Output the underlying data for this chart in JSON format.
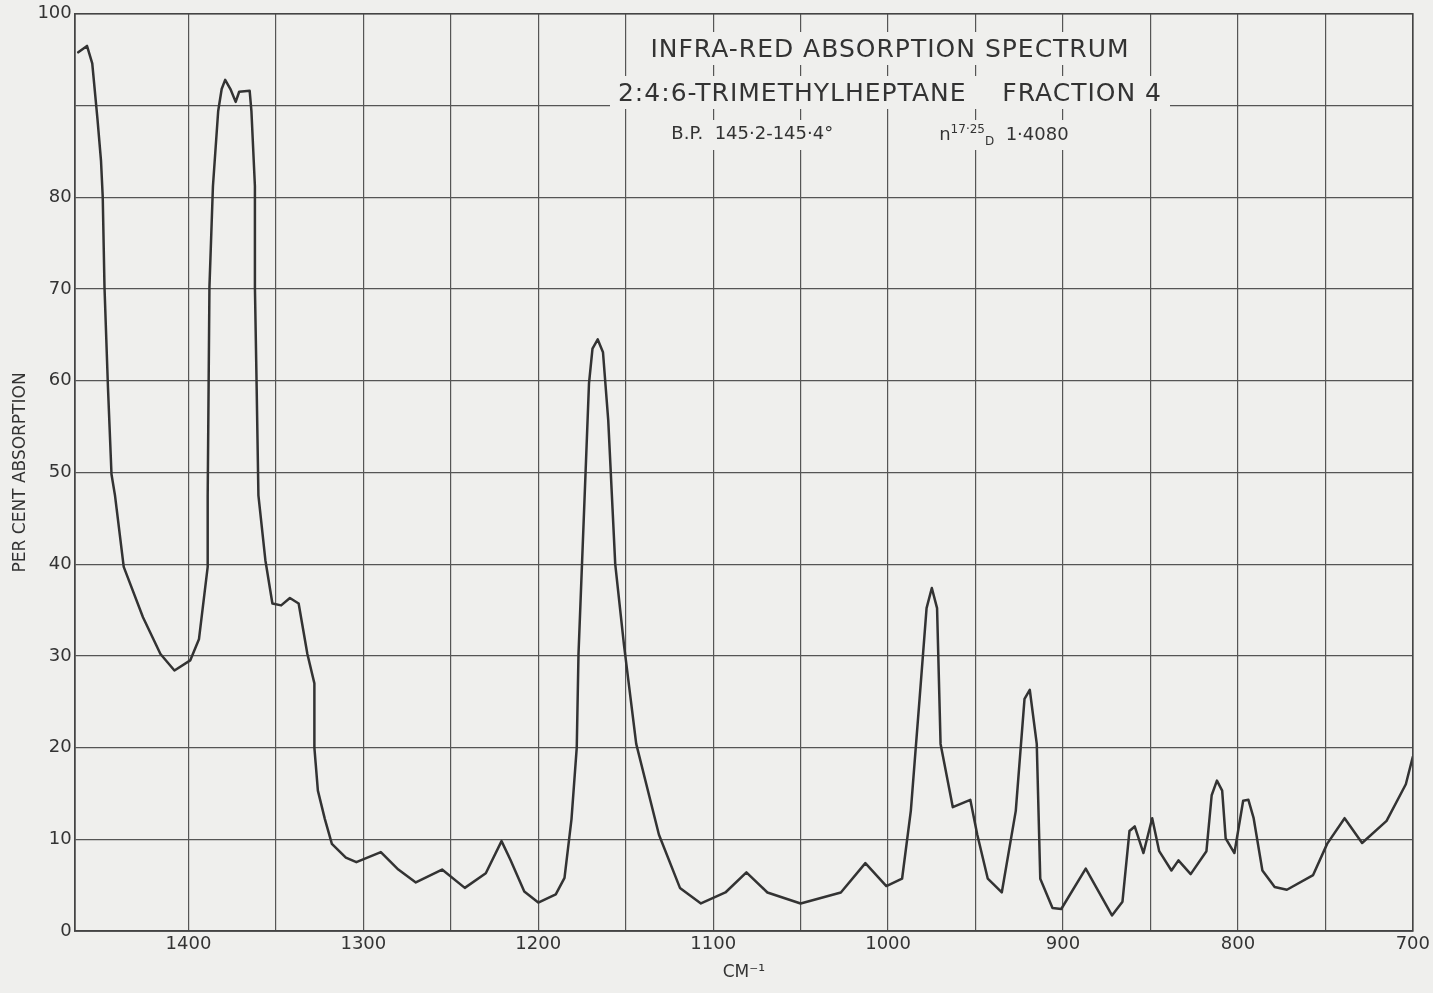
{
  "chart_data": {
    "type": "line",
    "title": "INFRA-RED ABSORPTION SPECTRUM",
    "subtitle": "2:4:6-TRIMETHYLHEPTANE    FRACTION 4",
    "xlabel": "CM⁻¹",
    "ylabel": "PER CENT ABSORPTION",
    "annotations": [
      "B.P.  145·2-145·4°",
      "n$^{17·25}$$_{D}$  1·4080"
    ],
    "x": [
      1463,
      1458,
      1455,
      1452,
      1450,
      1449,
      1448,
      1446,
      1444,
      1442,
      1437,
      1426,
      1416,
      1408,
      1399,
      1394,
      1389,
      1389,
      1388,
      1386,
      1383,
      1381,
      1379,
      1376,
      1373,
      1371,
      1365,
      1364,
      1362,
      1362,
      1361,
      1360,
      1356,
      1352,
      1347,
      1342,
      1337,
      1332,
      1328,
      1328,
      1326,
      1322,
      1318,
      1310,
      1304,
      1290,
      1280,
      1270,
      1255,
      1242,
      1230,
      1221,
      1216,
      1208,
      1200,
      1190,
      1185,
      1181,
      1178,
      1177,
      1173,
      1171,
      1169,
      1166,
      1163,
      1160,
      1156,
      1151,
      1144,
      1131,
      1119,
      1107,
      1093,
      1081,
      1069,
      1050,
      1027,
      1013,
      1001,
      992,
      987,
      982,
      978,
      975,
      972,
      970,
      963,
      953,
      949,
      943,
      935,
      927,
      922,
      919,
      915,
      913,
      906,
      901,
      887,
      872,
      866,
      862,
      859,
      854,
      849,
      845,
      838,
      834,
      827,
      818,
      815,
      812,
      809,
      807,
      802,
      797,
      794,
      791,
      786,
      779,
      772,
      757,
      749,
      739,
      729,
      715,
      704,
      700
    ],
    "series": [
      {
        "color": "#333333",
        "values": [
          95.8,
          96.5,
          94.6,
          88.5,
          84,
          80,
          70.2,
          59.2,
          49.8,
          47.5,
          39.7,
          34.2,
          30.2,
          28.4,
          29.5,
          31.8,
          39.7,
          47.5,
          70.2,
          81.2,
          89.4,
          91.8,
          92.8,
          91.8,
          90.4,
          91.5,
          91.6,
          89.4,
          81.2,
          70.2,
          59.2,
          47.5,
          40.4,
          35.7,
          35.5,
          36.3,
          35.7,
          30.2,
          27,
          20,
          15.3,
          12.2,
          9.5,
          8,
          7.5,
          8.6,
          6.7,
          5.3,
          6.7,
          4.7,
          6.3,
          9.8,
          7.8,
          4.3,
          3.1,
          4,
          5.8,
          12.2,
          20,
          30.2,
          49.8,
          59.7,
          63.5,
          64.5,
          63.1,
          55.7,
          40,
          31.2,
          20.4,
          10.5,
          4.7,
          3,
          4.2,
          6.4,
          4.2,
          3,
          4.2,
          7.4,
          4.9,
          5.7,
          13.1,
          25.3,
          35.2,
          37.4,
          35.2,
          20.4,
          13.5,
          14.3,
          10.5,
          5.7,
          4.2,
          13.1,
          25.3,
          26.3,
          20.4,
          5.7,
          2.5,
          2.4,
          6.8,
          1.7,
          3.2,
          10.9,
          11.4,
          8.5,
          12.3,
          8.7,
          6.6,
          7.7,
          6.2,
          8.7,
          14.8,
          16.4,
          15.3,
          10.1,
          8.5,
          14.2,
          14.3,
          12.3,
          6.6,
          4.8,
          4.5,
          6.1,
          9.5,
          12.3,
          9.6,
          12,
          16,
          19
        ]
      }
    ],
    "xlim": [
      1465,
      700
    ],
    "xticks": [
      1400,
      {
        "value": 1350,
        "label": null
      },
      1300,
      {
        "value": 1250,
        "label": null
      },
      1200,
      {
        "value": 1150,
        "label": null
      },
      1100,
      {
        "value": 1050,
        "label": null
      },
      1000,
      {
        "value": 950,
        "label": null
      },
      900,
      {
        "value": 850,
        "label": null
      },
      800,
      {
        "value": 750,
        "label": null
      },
      700
    ],
    "ylim": [
      0,
      100
    ],
    "yticks": [
      0,
      10,
      20,
      30,
      40,
      50,
      60,
      70,
      80,
      {
        "value": 90,
        "label": null
      },
      100
    ],
    "grid": true,
    "marker": "none",
    "line_style": "solid"
  }
}
